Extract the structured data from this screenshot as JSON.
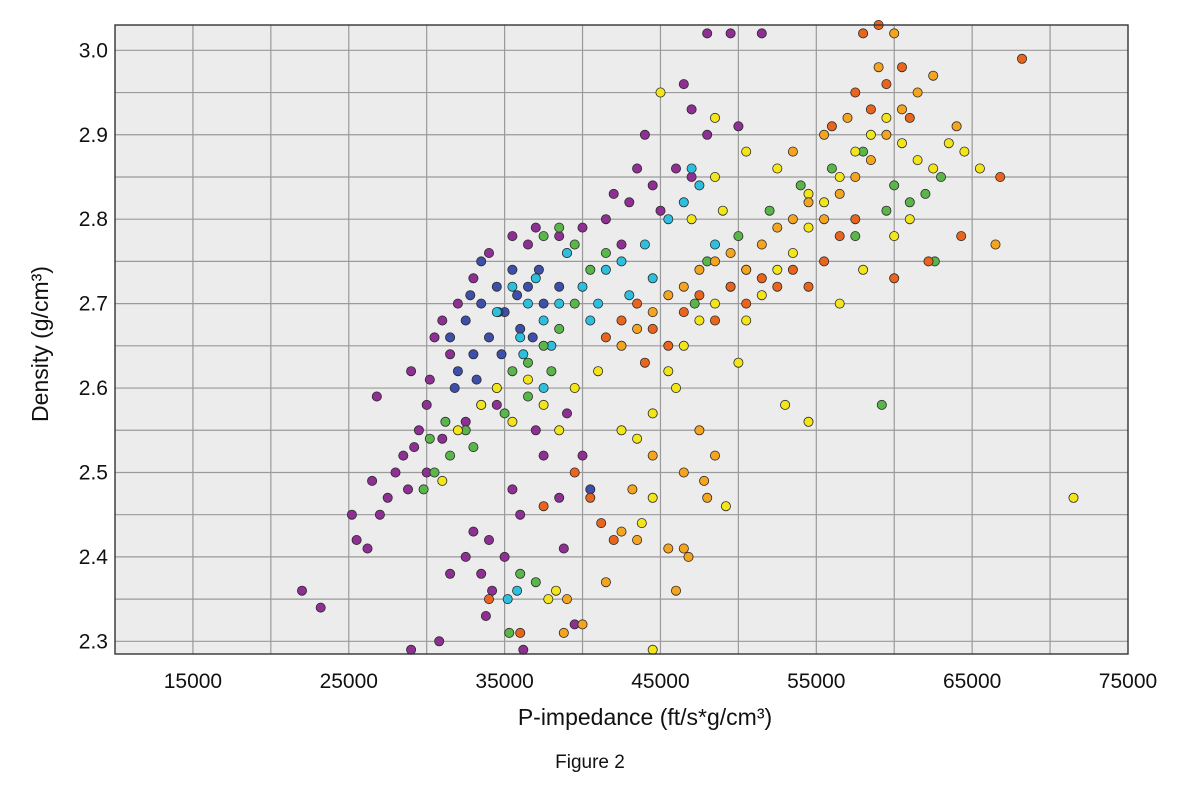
{
  "chart_data": {
    "type": "scatter",
    "xlabel": "P-impedance (ft/s*g/cm³)",
    "ylabel": "Density (g/cm³)",
    "xlim": [
      10000,
      75000
    ],
    "ylim": [
      2.285,
      3.03
    ],
    "x_ticks": [
      "15000",
      "25000",
      "35000",
      "45000",
      "55000",
      "65000",
      "75000"
    ],
    "y_ticks": [
      "2.3",
      "2.4",
      "2.5",
      "2.6",
      "2.7",
      "2.8",
      "2.9",
      "3.0"
    ],
    "grid": true,
    "marker_colors": [
      "#8e2f93",
      "#3d4fa8",
      "#2cc0de",
      "#5ab54a",
      "#f2e51a",
      "#f5a41f",
      "#e9641c"
    ],
    "series": [
      {
        "color": "#8e2f93",
        "points": [
          [
            29000,
            2.62
          ],
          [
            30500,
            2.66
          ],
          [
            31500,
            2.64
          ],
          [
            30000,
            2.58
          ],
          [
            29500,
            2.55
          ],
          [
            28500,
            2.52
          ],
          [
            28000,
            2.5
          ],
          [
            27500,
            2.47
          ],
          [
            27000,
            2.45
          ],
          [
            26500,
            2.49
          ],
          [
            26800,
            2.59
          ],
          [
            29200,
            2.53
          ],
          [
            30200,
            2.61
          ],
          [
            31000,
            2.68
          ],
          [
            32000,
            2.7
          ],
          [
            33000,
            2.73
          ],
          [
            34000,
            2.76
          ],
          [
            35500,
            2.78
          ],
          [
            37000,
            2.79
          ],
          [
            38500,
            2.78
          ],
          [
            40000,
            2.79
          ],
          [
            41500,
            2.8
          ],
          [
            43000,
            2.82
          ],
          [
            44500,
            2.84
          ],
          [
            46000,
            2.86
          ],
          [
            44000,
            2.9
          ],
          [
            43500,
            2.86
          ],
          [
            42000,
            2.83
          ],
          [
            45000,
            2.81
          ],
          [
            47000,
            2.85
          ],
          [
            42500,
            2.77
          ],
          [
            39000,
            2.76
          ],
          [
            36500,
            2.77
          ],
          [
            25200,
            2.45
          ],
          [
            25500,
            2.42
          ],
          [
            26200,
            2.41
          ],
          [
            22000,
            2.36
          ],
          [
            23200,
            2.34
          ],
          [
            29000,
            2.29
          ],
          [
            30800,
            2.3
          ],
          [
            31500,
            2.38
          ],
          [
            32500,
            2.4
          ],
          [
            33000,
            2.43
          ],
          [
            34000,
            2.42
          ],
          [
            33500,
            2.38
          ],
          [
            34200,
            2.36
          ],
          [
            33800,
            2.33
          ],
          [
            35000,
            2.4
          ],
          [
            35500,
            2.48
          ],
          [
            36000,
            2.45
          ],
          [
            37500,
            2.52
          ],
          [
            38500,
            2.47
          ],
          [
            38800,
            2.41
          ],
          [
            39500,
            2.32
          ],
          [
            36200,
            2.29
          ],
          [
            37000,
            2.55
          ],
          [
            39000,
            2.57
          ],
          [
            40000,
            2.52
          ],
          [
            34500,
            2.58
          ],
          [
            32500,
            2.56
          ],
          [
            31000,
            2.54
          ],
          [
            30000,
            2.5
          ],
          [
            28800,
            2.48
          ],
          [
            48000,
            3.02
          ],
          [
            49500,
            3.02
          ],
          [
            51500,
            3.02
          ],
          [
            46500,
            2.96
          ],
          [
            47000,
            2.93
          ],
          [
            48000,
            2.9
          ],
          [
            50000,
            2.91
          ]
        ]
      },
      {
        "color": "#3d4fa8",
        "points": [
          [
            31500,
            2.66
          ],
          [
            32500,
            2.68
          ],
          [
            33500,
            2.7
          ],
          [
            34500,
            2.72
          ],
          [
            35000,
            2.69
          ],
          [
            33000,
            2.64
          ],
          [
            32000,
            2.62
          ],
          [
            34000,
            2.66
          ],
          [
            35500,
            2.74
          ],
          [
            36500,
            2.72
          ],
          [
            33500,
            2.75
          ],
          [
            34800,
            2.64
          ],
          [
            36000,
            2.67
          ],
          [
            37500,
            2.7
          ],
          [
            38500,
            2.72
          ],
          [
            31800,
            2.6
          ],
          [
            33200,
            2.61
          ],
          [
            34600,
            2.69
          ],
          [
            35800,
            2.71
          ],
          [
            37200,
            2.74
          ],
          [
            40500,
            2.48
          ],
          [
            32800,
            2.71
          ],
          [
            36800,
            2.66
          ]
        ]
      },
      {
        "color": "#2cc0de",
        "points": [
          [
            35500,
            2.72
          ],
          [
            37000,
            2.73
          ],
          [
            38500,
            2.7
          ],
          [
            40000,
            2.72
          ],
          [
            41500,
            2.74
          ],
          [
            39000,
            2.76
          ],
          [
            37500,
            2.68
          ],
          [
            36000,
            2.66
          ],
          [
            34500,
            2.69
          ],
          [
            42500,
            2.75
          ],
          [
            44000,
            2.77
          ],
          [
            45500,
            2.8
          ],
          [
            46500,
            2.82
          ],
          [
            47500,
            2.84
          ],
          [
            44500,
            2.73
          ],
          [
            36500,
            2.7
          ],
          [
            38000,
            2.65
          ],
          [
            40500,
            2.68
          ],
          [
            43000,
            2.71
          ],
          [
            47000,
            2.86
          ],
          [
            35800,
            2.36
          ],
          [
            35200,
            2.35
          ],
          [
            37500,
            2.6
          ],
          [
            36200,
            2.64
          ],
          [
            41000,
            2.7
          ],
          [
            48500,
            2.77
          ],
          [
            50500,
            2.74
          ]
        ]
      },
      {
        "color": "#5ab54a",
        "points": [
          [
            30500,
            2.5
          ],
          [
            31500,
            2.52
          ],
          [
            32500,
            2.55
          ],
          [
            33500,
            2.58
          ],
          [
            34500,
            2.6
          ],
          [
            35500,
            2.62
          ],
          [
            36500,
            2.63
          ],
          [
            37500,
            2.65
          ],
          [
            38500,
            2.67
          ],
          [
            39500,
            2.7
          ],
          [
            40500,
            2.74
          ],
          [
            41500,
            2.76
          ],
          [
            30200,
            2.54
          ],
          [
            29800,
            2.48
          ],
          [
            31200,
            2.56
          ],
          [
            33000,
            2.53
          ],
          [
            35000,
            2.57
          ],
          [
            36500,
            2.59
          ],
          [
            38000,
            2.62
          ],
          [
            37500,
            2.78
          ],
          [
            38500,
            2.79
          ],
          [
            39500,
            2.77
          ],
          [
            48000,
            2.75
          ],
          [
            50000,
            2.78
          ],
          [
            52000,
            2.81
          ],
          [
            54000,
            2.84
          ],
          [
            56000,
            2.86
          ],
          [
            58000,
            2.88
          ],
          [
            60000,
            2.84
          ],
          [
            61000,
            2.82
          ],
          [
            62000,
            2.83
          ],
          [
            63000,
            2.85
          ],
          [
            59500,
            2.81
          ],
          [
            57500,
            2.78
          ],
          [
            59200,
            2.58
          ],
          [
            62600,
            2.75
          ],
          [
            47200,
            2.7
          ],
          [
            37000,
            2.37
          ],
          [
            36000,
            2.38
          ],
          [
            35300,
            2.31
          ]
        ]
      },
      {
        "color": "#f2e51a",
        "points": [
          [
            32000,
            2.55
          ],
          [
            33500,
            2.58
          ],
          [
            34500,
            2.6
          ],
          [
            35500,
            2.56
          ],
          [
            36500,
            2.61
          ],
          [
            37500,
            2.58
          ],
          [
            38500,
            2.55
          ],
          [
            39500,
            2.6
          ],
          [
            41000,
            2.62
          ],
          [
            42500,
            2.55
          ],
          [
            43500,
            2.54
          ],
          [
            44500,
            2.57
          ],
          [
            45500,
            2.62
          ],
          [
            46500,
            2.65
          ],
          [
            47500,
            2.68
          ],
          [
            48500,
            2.7
          ],
          [
            49500,
            2.72
          ],
          [
            50500,
            2.68
          ],
          [
            51500,
            2.71
          ],
          [
            52500,
            2.74
          ],
          [
            53500,
            2.76
          ],
          [
            54500,
            2.79
          ],
          [
            55500,
            2.82
          ],
          [
            56500,
            2.85
          ],
          [
            57500,
            2.88
          ],
          [
            58500,
            2.9
          ],
          [
            59500,
            2.92
          ],
          [
            60500,
            2.89
          ],
          [
            61500,
            2.87
          ],
          [
            62500,
            2.86
          ],
          [
            63500,
            2.89
          ],
          [
            64500,
            2.88
          ],
          [
            65500,
            2.86
          ],
          [
            48500,
            2.85
          ],
          [
            50500,
            2.88
          ],
          [
            52500,
            2.86
          ],
          [
            54500,
            2.83
          ],
          [
            47000,
            2.8
          ],
          [
            49000,
            2.81
          ],
          [
            45000,
            2.95
          ],
          [
            48500,
            2.92
          ],
          [
            53000,
            2.58
          ],
          [
            54500,
            2.56
          ],
          [
            71500,
            2.47
          ],
          [
            49200,
            2.46
          ],
          [
            44500,
            2.47
          ],
          [
            43800,
            2.44
          ],
          [
            37800,
            2.35
          ],
          [
            38300,
            2.36
          ],
          [
            44500,
            2.29
          ],
          [
            31000,
            2.49
          ],
          [
            46000,
            2.6
          ],
          [
            50000,
            2.63
          ],
          [
            56500,
            2.7
          ],
          [
            58000,
            2.74
          ],
          [
            60000,
            2.78
          ],
          [
            61000,
            2.8
          ]
        ]
      },
      {
        "color": "#f5a41f",
        "points": [
          [
            42500,
            2.65
          ],
          [
            43500,
            2.67
          ],
          [
            44500,
            2.69
          ],
          [
            45500,
            2.71
          ],
          [
            46500,
            2.72
          ],
          [
            47500,
            2.74
          ],
          [
            48500,
            2.75
          ],
          [
            49500,
            2.76
          ],
          [
            50500,
            2.74
          ],
          [
            51500,
            2.77
          ],
          [
            52500,
            2.79
          ],
          [
            53500,
            2.8
          ],
          [
            54500,
            2.82
          ],
          [
            55500,
            2.8
          ],
          [
            56500,
            2.83
          ],
          [
            57500,
            2.85
          ],
          [
            58500,
            2.87
          ],
          [
            59500,
            2.9
          ],
          [
            60500,
            2.93
          ],
          [
            61500,
            2.95
          ],
          [
            62500,
            2.97
          ],
          [
            55500,
            2.9
          ],
          [
            53500,
            2.88
          ],
          [
            57000,
            2.92
          ],
          [
            59000,
            2.98
          ],
          [
            60000,
            3.02
          ],
          [
            47500,
            2.55
          ],
          [
            48500,
            2.52
          ],
          [
            46500,
            2.5
          ],
          [
            44500,
            2.52
          ],
          [
            42500,
            2.43
          ],
          [
            43500,
            2.42
          ],
          [
            45500,
            2.41
          ],
          [
            46500,
            2.41
          ],
          [
            46000,
            2.36
          ],
          [
            39000,
            2.35
          ],
          [
            40000,
            2.32
          ],
          [
            38800,
            2.31
          ],
          [
            41500,
            2.37
          ],
          [
            48000,
            2.47
          ],
          [
            46800,
            2.4
          ],
          [
            43200,
            2.48
          ],
          [
            47800,
            2.49
          ],
          [
            64000,
            2.91
          ],
          [
            66500,
            2.77
          ]
        ]
      },
      {
        "color": "#e9641c",
        "points": [
          [
            41500,
            2.66
          ],
          [
            42500,
            2.68
          ],
          [
            43500,
            2.7
          ],
          [
            44500,
            2.67
          ],
          [
            45500,
            2.65
          ],
          [
            46500,
            2.69
          ],
          [
            47500,
            2.71
          ],
          [
            48500,
            2.68
          ],
          [
            49500,
            2.72
          ],
          [
            50500,
            2.7
          ],
          [
            51500,
            2.73
          ],
          [
            52500,
            2.72
          ],
          [
            53500,
            2.74
          ],
          [
            54500,
            2.72
          ],
          [
            55500,
            2.75
          ],
          [
            56500,
            2.78
          ],
          [
            57500,
            2.8
          ],
          [
            58500,
            2.93
          ],
          [
            59500,
            2.96
          ],
          [
            60500,
            2.98
          ],
          [
            58000,
            3.02
          ],
          [
            59000,
            3.03
          ],
          [
            61000,
            2.92
          ],
          [
            57500,
            2.95
          ],
          [
            56000,
            2.91
          ],
          [
            68200,
            2.99
          ],
          [
            64300,
            2.78
          ],
          [
            62200,
            2.75
          ],
          [
            60000,
            2.73
          ],
          [
            39500,
            2.5
          ],
          [
            40500,
            2.47
          ],
          [
            37500,
            2.46
          ],
          [
            41200,
            2.44
          ],
          [
            42000,
            2.42
          ],
          [
            34000,
            2.35
          ],
          [
            36000,
            2.31
          ],
          [
            66800,
            2.85
          ],
          [
            44000,
            2.63
          ]
        ]
      }
    ]
  },
  "caption": "Figure 2"
}
